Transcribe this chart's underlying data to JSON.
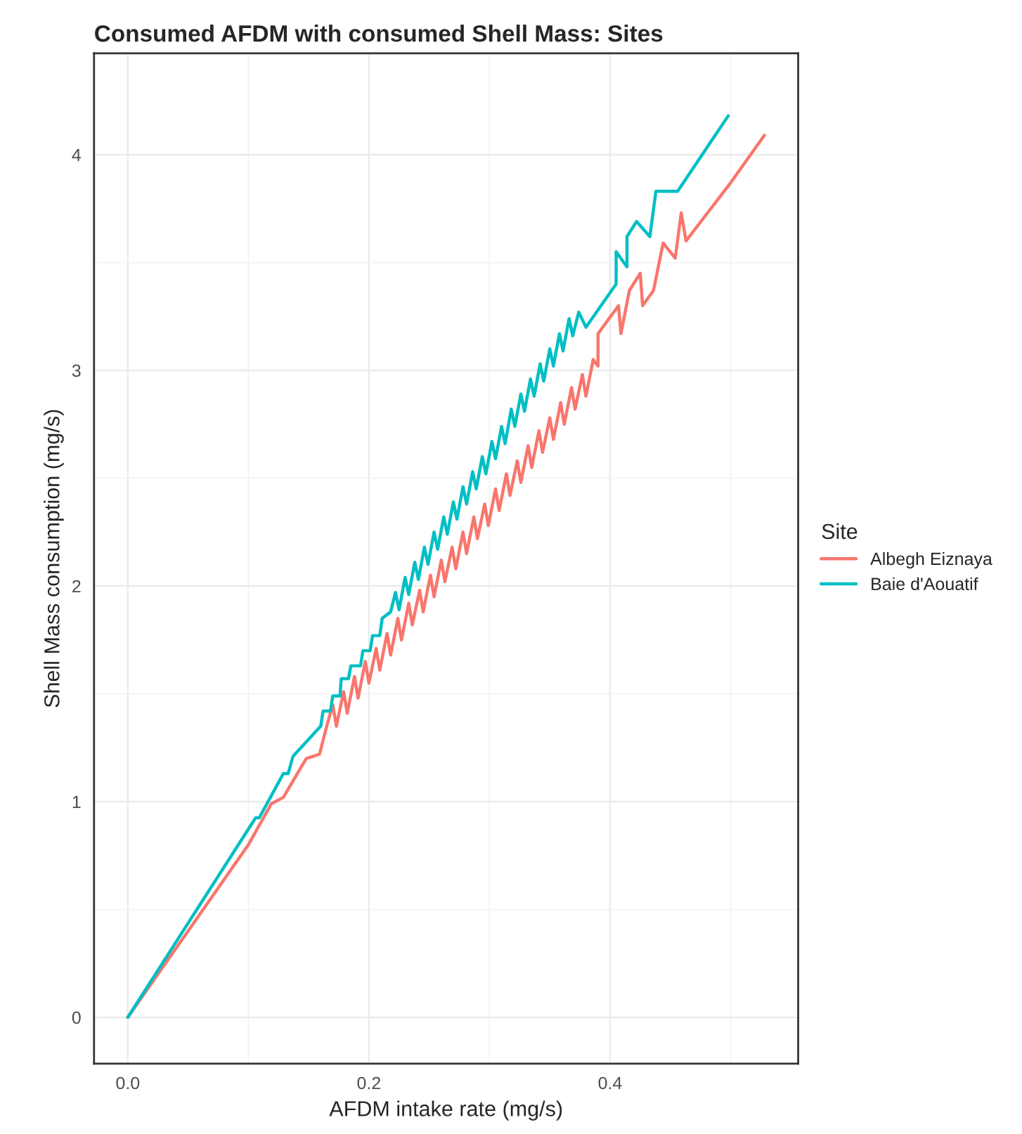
{
  "chart_data": {
    "type": "line",
    "title": "Consumed AFDM with consumed Shell Mass: Sites",
    "xlabel": "AFDM intake rate (mg/s)",
    "ylabel": "Shell Mass consumption (mg/s)",
    "legend_title": "Site",
    "legend": "right",
    "grid": true,
    "xlim": [
      -0.028,
      0.556
    ],
    "ylim": [
      -0.215,
      4.47
    ],
    "xticks": [
      {
        "value": 0,
        "label": "0.0"
      },
      {
        "value": 0.2,
        "label": "0.2"
      },
      {
        "value": 0.4,
        "label": "0.4"
      }
    ],
    "yticks": [
      0,
      1,
      2,
      3,
      4
    ],
    "series": [
      {
        "name": "Albegh Eiznaya",
        "color": "#f8766d",
        "x": [
          0,
          0.1,
          0.119,
          0.129,
          0.148,
          0.159,
          0.165,
          0.17,
          0.173,
          0.179,
          0.182,
          0.188,
          0.191,
          0.197,
          0.2,
          0.206,
          0.209,
          0.215,
          0.218,
          0.224,
          0.227,
          0.233,
          0.236,
          0.242,
          0.245,
          0.251,
          0.254,
          0.26,
          0.263,
          0.269,
          0.272,
          0.278,
          0.281,
          0.287,
          0.29,
          0.296,
          0.299,
          0.305,
          0.308,
          0.314,
          0.317,
          0.323,
          0.326,
          0.332,
          0.335,
          0.341,
          0.344,
          0.35,
          0.353,
          0.359,
          0.362,
          0.368,
          0.371,
          0.377,
          0.38,
          0.386,
          0.39,
          0.39,
          0.407,
          0.409,
          0.416,
          0.425,
          0.427,
          0.436,
          0.444,
          0.454,
          0.459,
          0.463,
          0.5,
          0.528
        ],
        "values": [
          0,
          0.8,
          0.99,
          1.02,
          1.2,
          1.22,
          1.35,
          1.45,
          1.35,
          1.51,
          1.41,
          1.58,
          1.48,
          1.65,
          1.55,
          1.71,
          1.61,
          1.78,
          1.68,
          1.85,
          1.75,
          1.92,
          1.82,
          1.98,
          1.88,
          2.05,
          1.95,
          2.12,
          2.02,
          2.18,
          2.08,
          2.25,
          2.15,
          2.32,
          2.22,
          2.38,
          2.28,
          2.45,
          2.35,
          2.52,
          2.42,
          2.58,
          2.48,
          2.65,
          2.55,
          2.72,
          2.62,
          2.78,
          2.68,
          2.85,
          2.75,
          2.92,
          2.82,
          2.98,
          2.88,
          3.05,
          3.02,
          3.17,
          3.3,
          3.17,
          3.37,
          3.45,
          3.3,
          3.37,
          3.59,
          3.52,
          3.73,
          3.6,
          3.87,
          4.09
        ]
      },
      {
        "name": "Baie d'Aouatif",
        "color": "#00bfc4",
        "x": [
          0,
          0.106,
          0.109,
          0.129,
          0.133,
          0.137,
          0.16,
          0.162,
          0.168,
          0.17,
          0.176,
          0.177,
          0.183,
          0.185,
          0.193,
          0.195,
          0.201,
          0.203,
          0.209,
          0.211,
          0.218,
          0.222,
          0.225,
          0.23,
          0.233,
          0.238,
          0.241,
          0.246,
          0.249,
          0.254,
          0.257,
          0.262,
          0.265,
          0.27,
          0.273,
          0.278,
          0.281,
          0.286,
          0.289,
          0.294,
          0.297,
          0.302,
          0.305,
          0.31,
          0.313,
          0.318,
          0.321,
          0.326,
          0.329,
          0.334,
          0.337,
          0.342,
          0.345,
          0.35,
          0.353,
          0.358,
          0.361,
          0.366,
          0.369,
          0.374,
          0.38,
          0.405,
          0.405,
          0.414,
          0.414,
          0.422,
          0.433,
          0.438,
          0.456,
          0.498
        ],
        "values": [
          0,
          0.925,
          0.925,
          1.13,
          1.13,
          1.21,
          1.35,
          1.42,
          1.42,
          1.49,
          1.49,
          1.57,
          1.57,
          1.63,
          1.63,
          1.7,
          1.7,
          1.77,
          1.77,
          1.85,
          1.88,
          1.97,
          1.89,
          2.04,
          1.96,
          2.11,
          2.03,
          2.18,
          2.1,
          2.25,
          2.17,
          2.32,
          2.24,
          2.39,
          2.31,
          2.46,
          2.38,
          2.53,
          2.45,
          2.6,
          2.52,
          2.67,
          2.59,
          2.74,
          2.66,
          2.82,
          2.74,
          2.89,
          2.81,
          2.96,
          2.88,
          3.03,
          2.95,
          3.1,
          3.02,
          3.17,
          3.09,
          3.24,
          3.16,
          3.27,
          3.2,
          3.4,
          3.55,
          3.48,
          3.62,
          3.69,
          3.62,
          3.83,
          3.83,
          4.18
        ]
      }
    ]
  }
}
